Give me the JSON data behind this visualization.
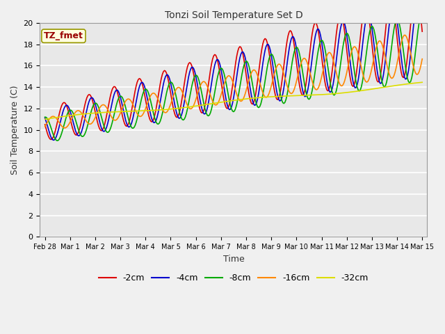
{
  "title": "Tonzi Soil Temperature Set D",
  "xlabel": "Time",
  "ylabel": "Soil Temperature (C)",
  "ylim": [
    0,
    20
  ],
  "background_color": "#e8e8e8",
  "fig_facecolor": "#f0f0f0",
  "legend_label": "TZ_fmet",
  "series": {
    "-2cm": {
      "color": "#dd0000",
      "linewidth": 1.2
    },
    "-4cm": {
      "color": "#0000cc",
      "linewidth": 1.2
    },
    "-8cm": {
      "color": "#00aa00",
      "linewidth": 1.2
    },
    "-16cm": {
      "color": "#ff8800",
      "linewidth": 1.2
    },
    "-32cm": {
      "color": "#dddd00",
      "linewidth": 1.2
    }
  },
  "xtick_labels": [
    "Feb 28",
    "Mar 1",
    "Mar 2",
    "Mar 3",
    "Mar 4",
    "Mar 5",
    "Mar 6",
    "Mar 7",
    "Mar 8",
    "Mar 9",
    "Mar 10",
    "Mar 11",
    "Mar 12",
    "Mar 13",
    "Mar 14",
    "Mar 15"
  ],
  "xtick_positions": [
    0,
    1,
    2,
    3,
    4,
    5,
    6,
    7,
    8,
    9,
    10,
    11,
    12,
    13,
    14,
    15
  ],
  "ytick_positions": [
    0,
    2,
    4,
    6,
    8,
    10,
    12,
    14,
    16,
    18,
    20
  ]
}
